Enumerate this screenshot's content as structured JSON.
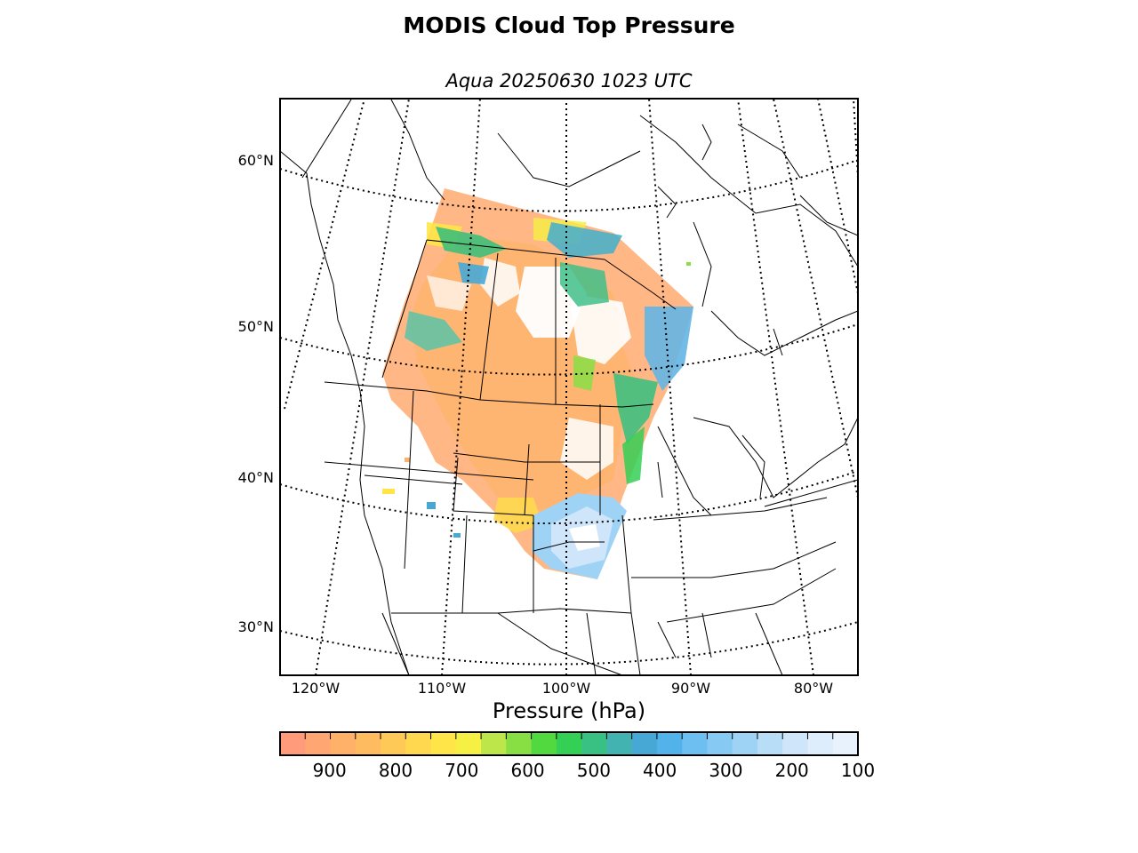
{
  "title": "MODIS Cloud Top Pressure",
  "subtitle": "Aqua 20250630 1023 UTC",
  "map": {
    "lat_labels": [
      "60°N",
      "50°N",
      "40°N",
      "30°N"
    ],
    "lon_labels": [
      "120°W",
      "110°W",
      "100°W",
      "90°W",
      "80°W"
    ]
  },
  "colorbar": {
    "label": "Pressure (hPa)",
    "ticks": [
      "900",
      "800",
      "700",
      "600",
      "500",
      "400",
      "300",
      "200",
      "100"
    ],
    "colors": [
      "#ff9a7a",
      "#ffa673",
      "#ffb069",
      "#ffbb60",
      "#ffc957",
      "#ffd84f",
      "#ffe547",
      "#f6ef44",
      "#bde64a",
      "#88df44",
      "#53d940",
      "#34cf55",
      "#39c184",
      "#42b3b0",
      "#47a8d6",
      "#52b2ea",
      "#6cbff0",
      "#86c9f2",
      "#9fd3f5",
      "#b8ddf7",
      "#cfe6fa",
      "#deedfb",
      "#e8f2fc"
    ]
  }
}
